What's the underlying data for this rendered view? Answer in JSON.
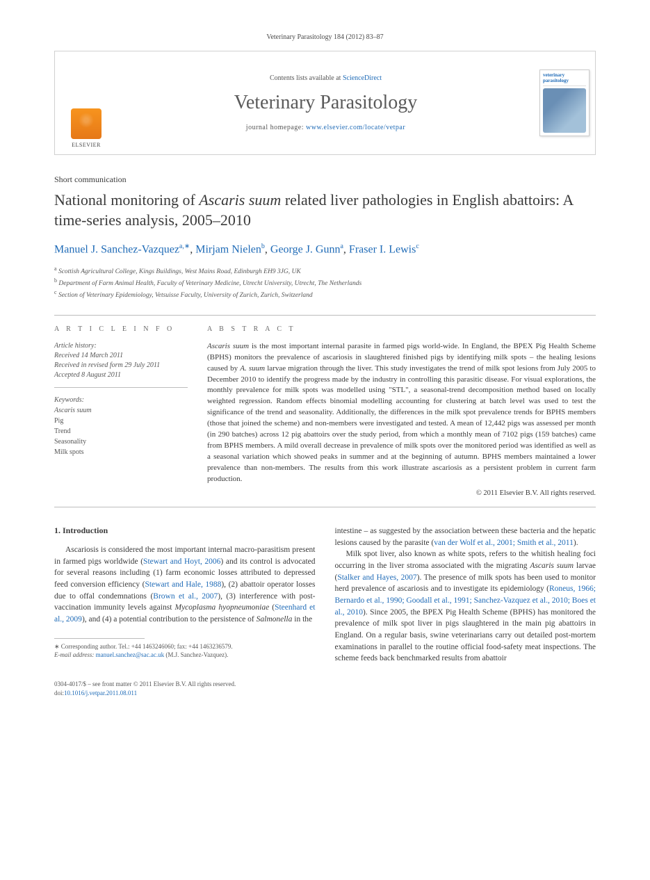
{
  "citation": "Veterinary Parasitology 184 (2012) 83–87",
  "header": {
    "contents_prefix": "Contents lists available at ",
    "contents_link": "ScienceDirect",
    "journal_name": "Veterinary Parasitology",
    "homepage_prefix": "journal homepage: ",
    "homepage_url": "www.elsevier.com/locate/vetpar",
    "publisher": "ELSEVIER",
    "cover_title": "veterinary parasitology"
  },
  "article": {
    "type": "Short communication",
    "title_pre": "National monitoring of ",
    "title_italic": "Ascaris suum",
    "title_post": " related liver pathologies in English abattoirs: A time-series analysis, 2005–2010"
  },
  "authors": {
    "a1_name": "Manuel J. Sanchez-Vazquez",
    "a1_sup": "a,∗",
    "a2_name": "Mirjam Nielen",
    "a2_sup": "b",
    "a3_name": "George J. Gunn",
    "a3_sup": "a",
    "a4_name": "Fraser I. Lewis",
    "a4_sup": "c"
  },
  "affiliations": {
    "a": "Scottish Agricultural College, Kings Buildings, West Mains Road, Edinburgh EH9 3JG, UK",
    "b": "Department of Farm Animal Health, Faculty of Veterinary Medicine, Utrecht University, Utrecht, The Netherlands",
    "c": "Section of Veterinary Epidemiology, Vetsuisse Faculty, University of Zurich, Zurich, Switzerland"
  },
  "info": {
    "section_label": "A R T I C L E   I N F O",
    "history_label": "Article history:",
    "received": "Received 14 March 2011",
    "revised": "Received in revised form 29 July 2011",
    "accepted": "Accepted 8 August 2011",
    "keywords_label": "Keywords:",
    "keywords": [
      "Ascaris suum",
      "Pig",
      "Trend",
      "Seasonality",
      "Milk spots"
    ]
  },
  "abstract": {
    "section_label": "A B S T R A C T",
    "text_1": "Ascaris suum",
    "text_2": " is the most important internal parasite in farmed pigs world-wide. In England, the BPEX Pig Health Scheme (BPHS) monitors the prevalence of ascariosis in slaughtered finished pigs by identifying milk spots – the healing lesions caused by ",
    "text_3": "A. suum",
    "text_4": " larvae migration through the liver. This study investigates the trend of milk spot lesions from July 2005 to December 2010 to identify the progress made by the industry in controlling this parasitic disease. For visual explorations, the monthly prevalence for milk spots was modelled using \"STL\", a seasonal-trend decomposition method based on locally weighted regression. Random effects binomial modelling accounting for clustering at batch level was used to test the significance of the trend and seasonality. Additionally, the differences in the milk spot prevalence trends for BPHS members (those that joined the scheme) and non-members were investigated and tested. A mean of 12,442 pigs was assessed per month (in 290 batches) across 12 pig abattoirs over the study period, from which a monthly mean of 7102 pigs (159 batches) came from BPHS members. A mild overall decrease in prevalence of milk spots over the monitored period was identified as well as a seasonal variation which showed peaks in summer and at the beginning of autumn. BPHS members maintained a lower prevalence than non-members. The results from this work illustrate ascariosis as a persistent problem in current farm production.",
    "copyright": "© 2011 Elsevier B.V. All rights reserved."
  },
  "body": {
    "heading1": "1.  Introduction",
    "col1_p1_a": "Ascariosis is considered the most important internal macro-parasitism present in farmed pigs worldwide (",
    "col1_p1_link1": "Stewart and Hoyt, 2006",
    "col1_p1_b": ") and its control is advocated for several reasons including (1) farm economic losses attributed to depressed feed conversion efficiency (",
    "col1_p1_link2": "Stewart and Hale, 1988",
    "col1_p1_c": "), (2) abattoir operator losses due to offal condemnations (",
    "col1_p1_link3": "Brown et al., 2007",
    "col1_p1_d": "), (3) interference with post-vaccination immunity levels against ",
    "col1_p1_italic1": "Mycoplasma hyopneumoniae",
    "col1_p1_e": " (",
    "col1_p1_link4": "Steenhard et al., 2009",
    "col1_p1_f": "), and (4) a potential contribution to the persistence of ",
    "col1_p1_italic2": "Salmonella",
    "col1_p1_g": " in the",
    "col2_p1_a": "intestine – as suggested by the association between these bacteria and the hepatic lesions caused by the parasite (",
    "col2_p1_link1": "van der Wolf et al., 2001; Smith et al., 2011",
    "col2_p1_b": ").",
    "col2_p2_a": "Milk spot liver, also known as white spots, refers to the whitish healing foci occurring in the liver stroma associated with the migrating ",
    "col2_p2_italic1": "Ascaris suum",
    "col2_p2_b": " larvae (",
    "col2_p2_link1": "Stalker and Hayes, 2007",
    "col2_p2_c": "). The presence of milk spots has been used to monitor herd prevalence of ascariosis and to investigate its epidemiology (",
    "col2_p2_link2": "Roneus, 1966; Bernardo et al., 1990; Goodall et al., 1991; Sanchez-Vazquez et al., 2010; Boes et al., 2010",
    "col2_p2_d": "). Since 2005, the BPEX Pig Health Scheme (BPHS) has monitored the prevalence of milk spot liver in pigs slaughtered in the main pig abattoirs in England. On a regular basis, swine veterinarians carry out detailed post-mortem examinations in parallel to the routine official food-safety meat inspections. The scheme feeds back benchmarked results from abattoir"
  },
  "footnote": {
    "corr": "∗ Corresponding author. Tel.: +44 1463246060; fax: +44 1463236579.",
    "email_label": "E-mail address:",
    "email": "manuel.sanchez@sac.ac.uk",
    "email_who": "(M.J. Sanchez-Vazquez)."
  },
  "footer": {
    "issn": "0304-4017/$ – see front matter © 2011 Elsevier B.V. All rights reserved.",
    "doi_label": "doi:",
    "doi": "10.1016/j.vetpar.2011.08.011"
  },
  "colors": {
    "link": "#1f6bb7",
    "text": "#3a3a3a",
    "muted": "#555555",
    "rule": "#bcbcbc",
    "elsevier_orange": "#f7941e"
  }
}
